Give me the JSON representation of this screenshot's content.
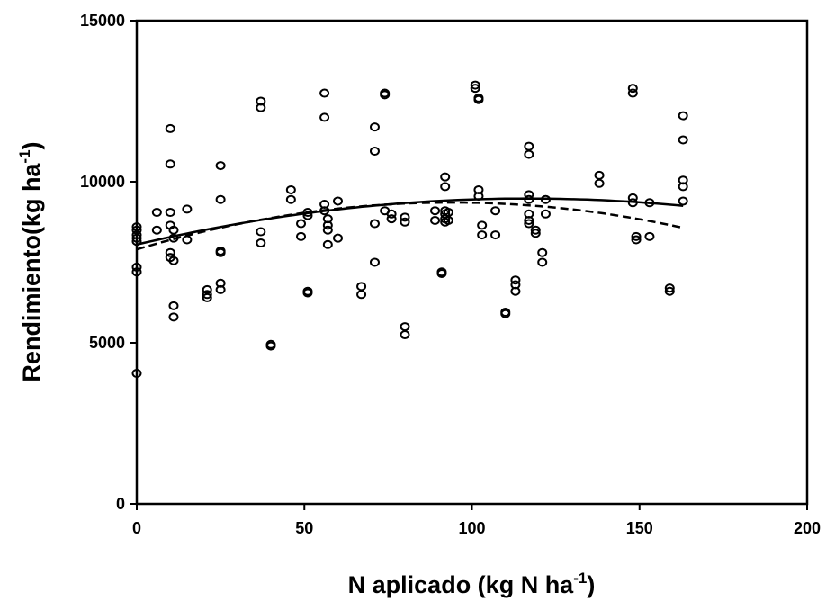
{
  "chart_data": {
    "type": "scatter",
    "title": "",
    "xlabel_main": "N aplicado  (kg N ha",
    "xlabel_sup": "-1",
    "xlabel_end": ")",
    "ylabel_main": "Rendimiento(kg ha",
    "ylabel_sup": "-1",
    "ylabel_end": ")",
    "xlim": [
      0,
      200
    ],
    "ylim": [
      0,
      15000
    ],
    "xticks": [
      0,
      50,
      100,
      150,
      200
    ],
    "yticks": [
      0,
      5000,
      10000,
      15000
    ],
    "xtick_labels": [
      "0",
      "50",
      "100",
      "150",
      "200"
    ],
    "ytick_labels": [
      "0",
      "5000",
      "10000",
      "15000"
    ],
    "grid": false,
    "legend": "none",
    "marker_color": "#000000",
    "points": [
      [
        0,
        4050
      ],
      [
        0,
        7200
      ],
      [
        0,
        7350
      ],
      [
        0,
        8150
      ],
      [
        0,
        8250
      ],
      [
        0,
        8350
      ],
      [
        0,
        8500
      ],
      [
        0,
        8600
      ],
      [
        6,
        9050
      ],
      [
        6,
        8500
      ],
      [
        10,
        11650
      ],
      [
        10,
        10550
      ],
      [
        10,
        9050
      ],
      [
        10,
        8650
      ],
      [
        10,
        7800
      ],
      [
        10,
        7650
      ],
      [
        11,
        6150
      ],
      [
        11,
        5800
      ],
      [
        11,
        8250
      ],
      [
        11,
        7550
      ],
      [
        11,
        8500
      ],
      [
        15,
        9150
      ],
      [
        15,
        8200
      ],
      [
        21,
        6650
      ],
      [
        21,
        6500
      ],
      [
        21,
        6400
      ],
      [
        25,
        10500
      ],
      [
        25,
        9450
      ],
      [
        25,
        7850
      ],
      [
        25,
        7800
      ],
      [
        25,
        6850
      ],
      [
        25,
        6650
      ],
      [
        37,
        12500
      ],
      [
        37,
        12300
      ],
      [
        37,
        8450
      ],
      [
        37,
        8100
      ],
      [
        40,
        4950
      ],
      [
        40,
        4900
      ],
      [
        46,
        9750
      ],
      [
        46,
        9450
      ],
      [
        49,
        8700
      ],
      [
        49,
        8300
      ],
      [
        51,
        9050
      ],
      [
        51,
        8950
      ],
      [
        51,
        6600
      ],
      [
        51,
        6550
      ],
      [
        56,
        12750
      ],
      [
        56,
        12000
      ],
      [
        56,
        9300
      ],
      [
        56,
        9100
      ],
      [
        57,
        8850
      ],
      [
        57,
        8650
      ],
      [
        57,
        8500
      ],
      [
        57,
        8050
      ],
      [
        60,
        9400
      ],
      [
        60,
        8250
      ],
      [
        67,
        6750
      ],
      [
        67,
        6500
      ],
      [
        71,
        11700
      ],
      [
        71,
        10950
      ],
      [
        71,
        8700
      ],
      [
        71,
        7500
      ],
      [
        74,
        12750
      ],
      [
        74,
        12700
      ],
      [
        74,
        9100
      ],
      [
        76,
        9000
      ],
      [
        76,
        8850
      ],
      [
        80,
        8900
      ],
      [
        80,
        8750
      ],
      [
        80,
        5500
      ],
      [
        80,
        5250
      ],
      [
        89,
        9100
      ],
      [
        89,
        8800
      ],
      [
        91,
        7200
      ],
      [
        91,
        7150
      ],
      [
        92,
        10150
      ],
      [
        92,
        9850
      ],
      [
        92,
        9100
      ],
      [
        92,
        9000
      ],
      [
        92,
        8850
      ],
      [
        92,
        8750
      ],
      [
        93,
        9050
      ],
      [
        93,
        8800
      ],
      [
        101,
        13000
      ],
      [
        101,
        12900
      ],
      [
        102,
        12600
      ],
      [
        102,
        12550
      ],
      [
        102,
        9750
      ],
      [
        102,
        9550
      ],
      [
        103,
        8650
      ],
      [
        103,
        8350
      ],
      [
        107,
        9100
      ],
      [
        107,
        8350
      ],
      [
        110,
        5950
      ],
      [
        110,
        5900
      ],
      [
        113,
        6950
      ],
      [
        113,
        6800
      ],
      [
        113,
        6600
      ],
      [
        117,
        11100
      ],
      [
        117,
        10850
      ],
      [
        117,
        9600
      ],
      [
        117,
        9450
      ],
      [
        117,
        9000
      ],
      [
        117,
        8800
      ],
      [
        117,
        8700
      ],
      [
        119,
        8500
      ],
      [
        119,
        8400
      ],
      [
        121,
        7800
      ],
      [
        121,
        7500
      ],
      [
        122,
        9450
      ],
      [
        122,
        9000
      ],
      [
        138,
        10200
      ],
      [
        138,
        9950
      ],
      [
        148,
        12900
      ],
      [
        148,
        12750
      ],
      [
        148,
        9500
      ],
      [
        148,
        9350
      ],
      [
        149,
        8300
      ],
      [
        149,
        8200
      ],
      [
        153,
        9350
      ],
      [
        153,
        8300
      ],
      [
        159,
        6700
      ],
      [
        159,
        6600
      ],
      [
        163,
        12050
      ],
      [
        163,
        11300
      ],
      [
        163,
        10050
      ],
      [
        163,
        9850
      ],
      [
        163,
        9400
      ]
    ],
    "curves": [
      {
        "style": "solid",
        "a": 8050,
        "b": 24.5,
        "c": -0.105,
        "x_range": [
          0,
          163
        ]
      },
      {
        "style": "dashed",
        "a": 7900,
        "b": 31,
        "c": -0.165,
        "x_range": [
          0,
          163
        ]
      }
    ]
  }
}
